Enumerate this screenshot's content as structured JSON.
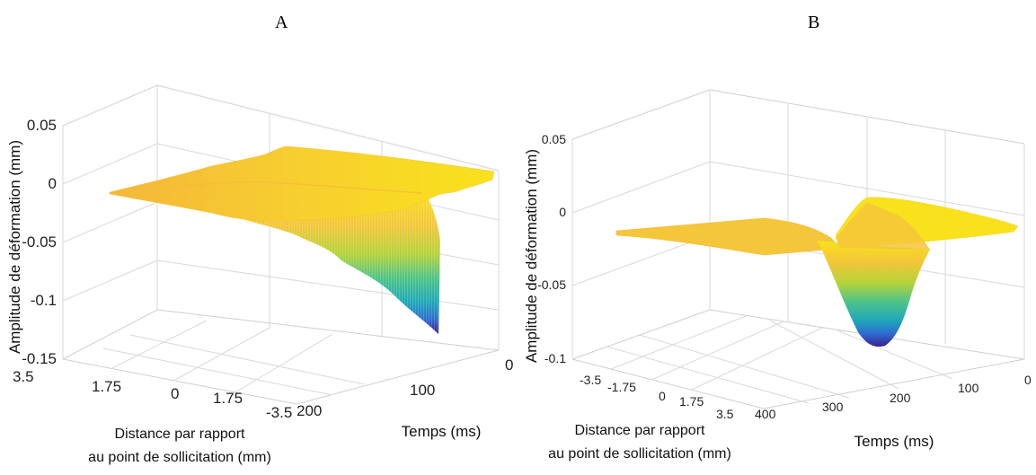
{
  "chart_data": [
    {
      "type": "surface3d",
      "panel_label": "A",
      "zlabel": "Amplitude de déformation  (mm)",
      "xlabel_line1": "Distance par rapport",
      "xlabel_line2": "au point de sollicitation (mm)",
      "ylabel": "Temps (ms)",
      "zlim": [
        -0.15,
        0.05
      ],
      "z_ticks": [
        "0.05",
        "0",
        "-0.05",
        "-0.1",
        "-0.15"
      ],
      "x_ticks": [
        "3.5",
        "1.75",
        "0",
        "1.75",
        "-3.5"
      ],
      "y_ticks": [
        "200",
        "100",
        "0"
      ],
      "colormap": [
        "#3b1f8f",
        "#2f6bd0",
        "#1fa8b8",
        "#4cc38a",
        "#b5d33a",
        "#f4c63a",
        "#f9e21b"
      ],
      "grid": true,
      "features": {
        "min_depth": -0.13,
        "min_at_time_ms": 0,
        "min_at_distance_mm": 0
      }
    },
    {
      "type": "surface3d",
      "panel_label": "B",
      "zlabel": "Amplitude de déformation  (mm)",
      "xlabel_line1": "Distance par rapport",
      "xlabel_line2": "au point de sollicitation (mm)",
      "ylabel": "Temps (ms)",
      "zlim": [
        -0.1,
        0.05
      ],
      "z_ticks": [
        "0.05",
        "0",
        "-0.05",
        "-0.1"
      ],
      "x_ticks": [
        "-3.5",
        "-1.75",
        "0",
        "1.75",
        "3.5"
      ],
      "y_ticks": [
        "400",
        "300",
        "200",
        "100",
        "0"
      ],
      "colormap": [
        "#3b1f8f",
        "#2f6bd0",
        "#1fa8b8",
        "#4cc38a",
        "#b5d33a",
        "#f4c63a",
        "#f9e21b"
      ],
      "grid": true,
      "features": {
        "min_depth": -0.095,
        "min_at_time_ms": 200,
        "min_at_distance_mm": 0
      }
    }
  ]
}
